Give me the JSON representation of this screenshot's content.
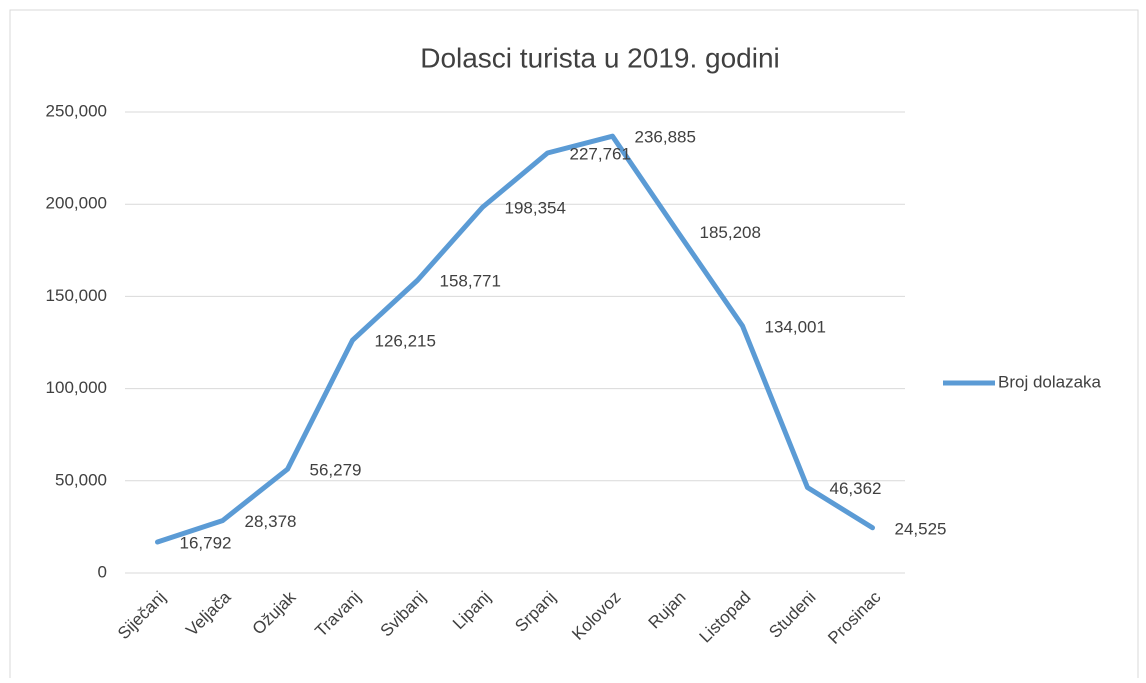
{
  "chart_data": {
    "type": "line",
    "title": "Dolasci turista u 2019. godini",
    "categories": [
      "Siječanj",
      "Veljača",
      "Ožujak",
      "Travanj",
      "Svibanj",
      "Lipanj",
      "Srpanj",
      "Kolovoz",
      "Rujan",
      "Listopad",
      "Studeni",
      "Prosinac"
    ],
    "series": [
      {
        "name": "Broj dolazaka",
        "color": "#5b9bd5",
        "values": [
          16792,
          28378,
          56279,
          126215,
          158771,
          198354,
          227761,
          236885,
          185208,
          134001,
          46362,
          24525
        ],
        "value_labels": [
          "16,792",
          "28,378",
          "56,279",
          "126,215",
          "158,771",
          "198,354",
          "227,761",
          "236,885",
          "185,208",
          "134,001",
          "46,362",
          "24,525"
        ]
      }
    ],
    "ylim": [
      0,
      250000
    ],
    "yticks": [
      0,
      {
        "value": 50000,
        "label": "50,000"
      },
      {
        "value": 100000,
        "label": "100,000"
      },
      {
        "value": 150000,
        "label": "150,000"
      },
      {
        "value": 200000,
        "label": "200,000"
      },
      {
        "value": 250000,
        "label": "250,000"
      }
    ],
    "grid": true,
    "legend": "right"
  }
}
